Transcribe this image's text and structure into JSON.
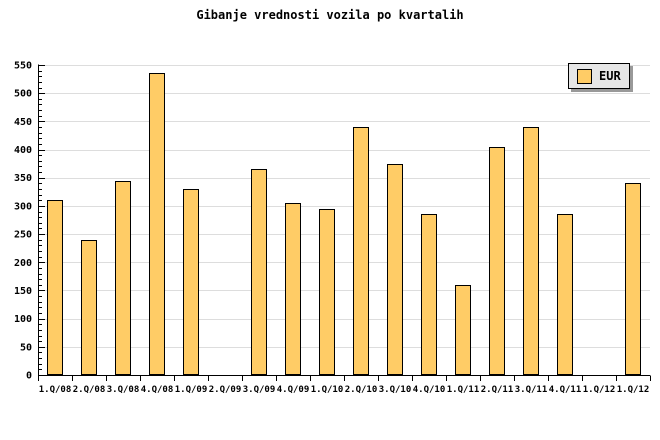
{
  "title": "Gibanje vrednosti vozila po kvartalih",
  "legend": {
    "label": "EUR"
  },
  "colors": {
    "background": "#FFFFFF",
    "bar_fill": "#FFCC66",
    "bar_border": "#000000",
    "gridline": "#DDDDDD",
    "axis": "#000000",
    "text": "#000000",
    "legend_bg": "#E6E6E6",
    "legend_shadow": "#999999"
  },
  "chart_data": {
    "type": "bar",
    "title": "Gibanje vrednosti vozila po kvartalih",
    "xlabel": "",
    "ylabel": "",
    "categories": [
      "1.Q/08",
      "2.Q/08",
      "3.Q/08",
      "4.Q/08",
      "1.Q/09",
      "2.Q/09",
      "3.Q/09",
      "4.Q/09",
      "1.Q/10",
      "2.Q/10",
      "3.Q/10",
      "4.Q/10",
      "1.Q/11",
      "2.Q/11",
      "3.Q/11",
      "4.Q/11",
      "1.Q/12",
      "1.Q/12"
    ],
    "series": [
      {
        "name": "EUR",
        "values": [
          310,
          240,
          345,
          535,
          330,
          null,
          365,
          305,
          295,
          440,
          375,
          285,
          160,
          405,
          440,
          285,
          null,
          340
        ]
      }
    ],
    "ylim": [
      0,
      550
    ],
    "y_ticks": [
      0,
      50,
      100,
      150,
      200,
      250,
      300,
      350,
      400,
      450,
      500,
      550
    ],
    "y_minor_tick_step": 10,
    "grid": true,
    "legend_position": "top-right"
  }
}
